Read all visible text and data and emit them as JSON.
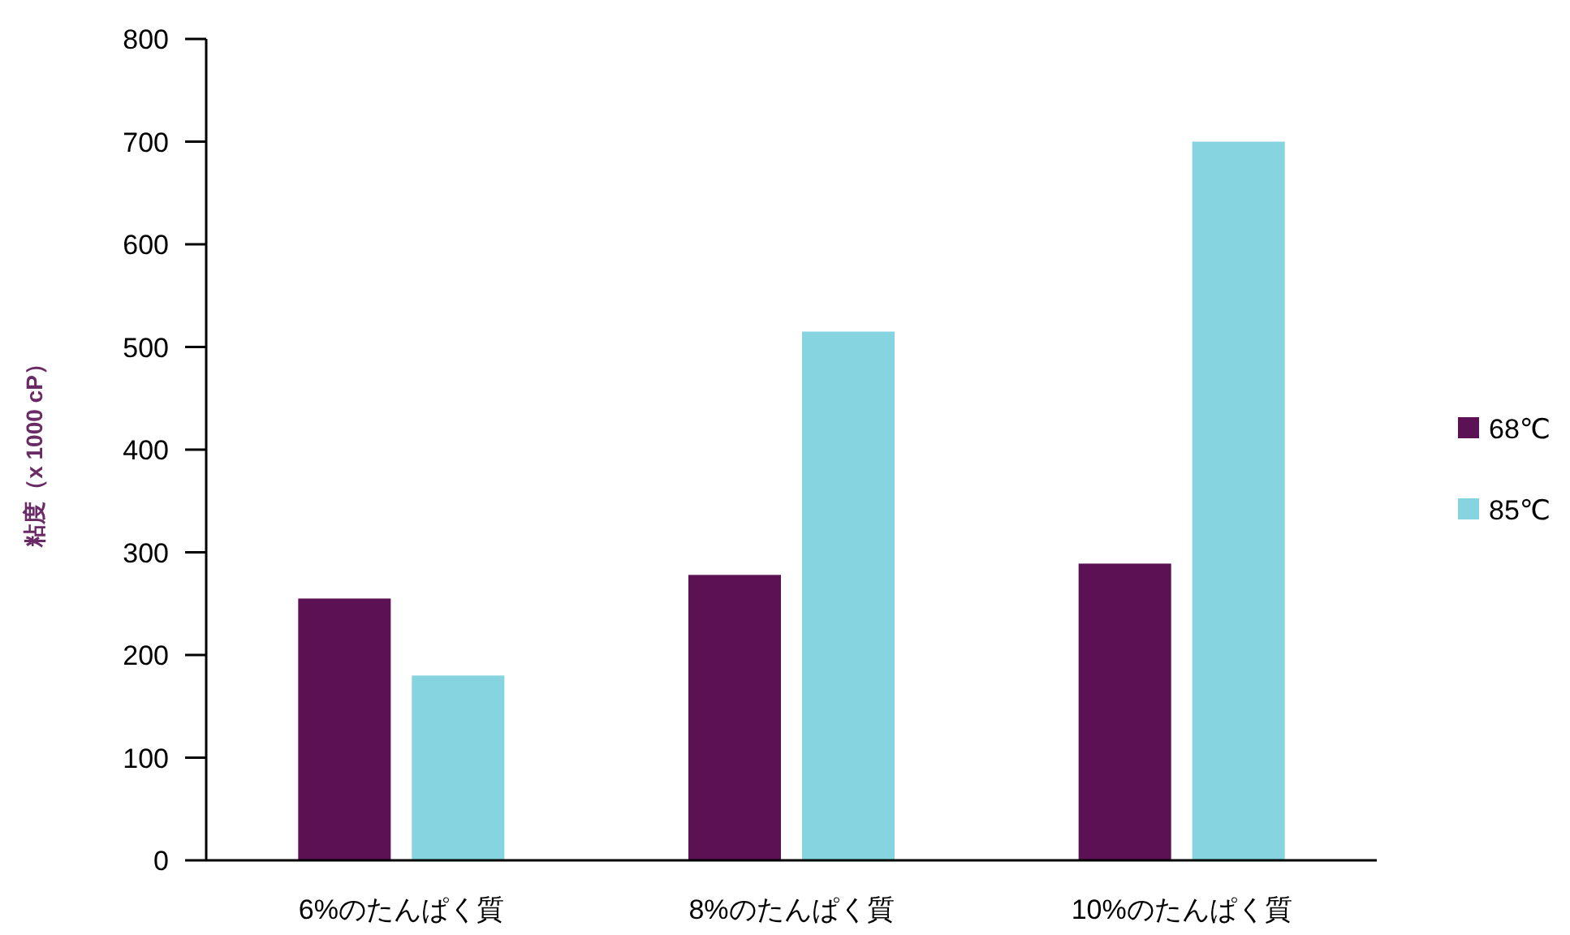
{
  "chart_data": {
    "type": "bar",
    "ylabel": "粘度（x 1000 cP）",
    "categories": [
      "6%のたんぱく質",
      "8%のたんぱく質",
      "10%のたんぱく質"
    ],
    "series": [
      {
        "name": "68℃",
        "color": "#5c1155",
        "values": [
          255,
          278,
          289
        ]
      },
      {
        "name": "85℃",
        "color": "#86d4e0",
        "values": [
          180,
          515,
          700
        ]
      }
    ],
    "ylim": [
      0,
      800
    ],
    "yticks": [
      0,
      100,
      200,
      300,
      400,
      500,
      600,
      700,
      800
    ],
    "legend": "right"
  }
}
